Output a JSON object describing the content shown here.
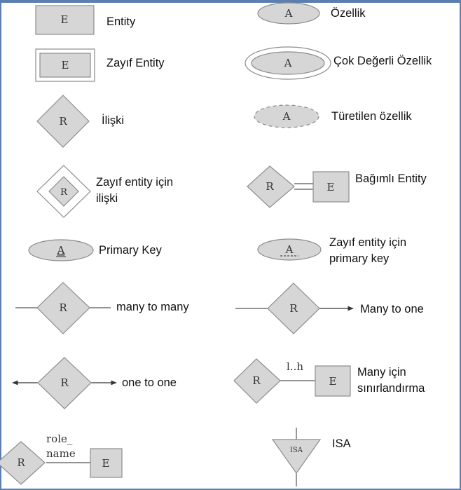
{
  "symbols": {
    "entity": {
      "glyph": "E",
      "label_lines": [
        "Entity"
      ]
    },
    "weak_entity": {
      "glyph": "E",
      "label_lines": [
        "Zayıf Entity"
      ]
    },
    "relationship": {
      "glyph": "R",
      "label_lines": [
        "İlişki"
      ]
    },
    "weak_relationship": {
      "glyph": "R",
      "label_lines": [
        "Zayıf entity için",
        "ilişki"
      ]
    },
    "primary_key": {
      "glyph": "A",
      "label_lines": [
        "Primary Key"
      ]
    },
    "many_to_many": {
      "glyph": "R",
      "label_lines": [
        "many to many"
      ]
    },
    "one_to_one": {
      "glyph": "R",
      "label_lines": [
        "one to one"
      ]
    },
    "role_name": {
      "glyph_r": "R",
      "glyph_e": "E",
      "role_lines": [
        "role_",
        "name"
      ]
    },
    "attribute": {
      "glyph": "A",
      "label_lines": [
        "Özellik"
      ]
    },
    "multivalued_attribute": {
      "glyph": "A",
      "label_lines": [
        "Çok Değerli Özellik"
      ]
    },
    "derived_attribute": {
      "glyph": "A",
      "label_lines": [
        "Türetilen özellik"
      ]
    },
    "dependent_entity": {
      "glyph_r": "R",
      "glyph_e": "E",
      "label_lines": [
        "Bağımlı Entity"
      ]
    },
    "partial_key": {
      "glyph": "A",
      "label_lines": [
        "Zayıf entity için",
        "primary key"
      ]
    },
    "many_to_one": {
      "glyph": "R",
      "label_lines": [
        "Many to one"
      ]
    },
    "cardinality_limit": {
      "glyph_r": "R",
      "glyph_e": "E",
      "limit": "l..h",
      "label_lines": [
        "Many için",
        "sınırlandırma"
      ]
    },
    "isa": {
      "glyph": "ISA",
      "label_lines": [
        "ISA"
      ]
    }
  },
  "colors": {
    "shape_fill": "#d6d6d6",
    "shape_stroke": "#8c8c8c",
    "line": "#555555",
    "frame": "#5a7fb0"
  }
}
